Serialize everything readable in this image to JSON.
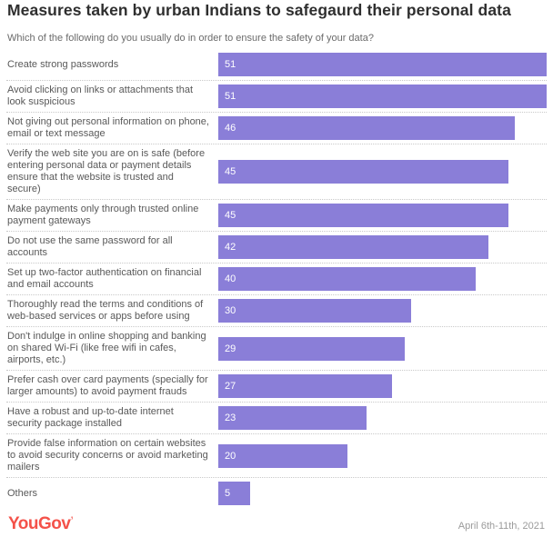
{
  "header": {
    "title": "Measures taken by urban Indians to safegaurd their personal data",
    "subtitle": "Which of the following do you usually do in order to ensure the safety of your data?"
  },
  "chart_data": {
    "type": "bar",
    "orientation": "horizontal",
    "title": "Measures taken by urban Indians to safegaurd their personal data",
    "subtitle": "Which of the following do you usually do in order to ensure the safety of your data?",
    "categories": [
      "Create strong passwords",
      "Avoid clicking on links or attachments that look suspicious",
      "Not giving out personal information on phone, email or text message",
      "Verify the web site you are on is safe (before entering personal data or payment details ensure that the website is trusted and secure)",
      "Make payments only through trusted online payment gateways",
      "Do not use the same password for all accounts",
      "Set up two-factor authentication on financial and email accounts",
      "Thoroughly read the terms and conditions of web-based services or apps before using",
      "Don't indulge in online shopping and banking on shared Wi-Fi (like free wifi in cafes, airports, etc.)",
      "Prefer cash over card payments (specially for larger amounts) to avoid payment frauds",
      "Have a robust and up-to-date internet security package installed",
      "Provide false information on certain websites to avoid security concerns or avoid marketing mailers",
      "Others"
    ],
    "values": [
      51,
      51,
      46,
      45,
      45,
      42,
      40,
      30,
      29,
      27,
      23,
      20,
      5
    ],
    "xlabel": "",
    "ylabel": "",
    "xlim": [
      0,
      51
    ],
    "grid": false,
    "legend": false,
    "value_labels": "inside-left"
  },
  "footer": {
    "logo": "YouGov",
    "logo_mark": "’",
    "date": "April 6th-11th, 2021"
  },
  "colors": {
    "bar": "#8a7ed8",
    "brand": "#f4524a",
    "title_text": "#2f2f2f",
    "label_text": "#595959",
    "separator": "#c9c9c9"
  }
}
